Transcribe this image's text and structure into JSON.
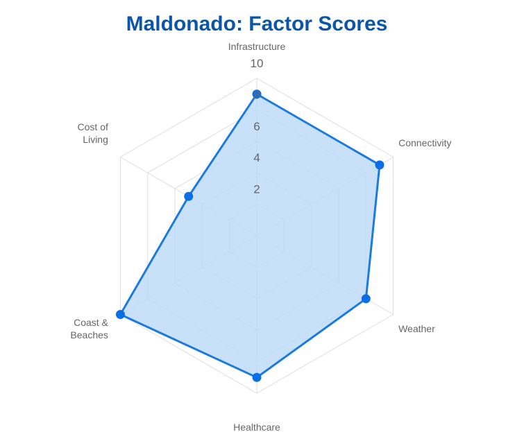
{
  "colors": {
    "title": "#0b56a8",
    "series_line": "#1a7ae0",
    "series_fill": "#b8d9f7",
    "series_point": "#0a6fe6",
    "grid": "#dedede",
    "label": "#666666"
  },
  "chart_data": {
    "type": "radar",
    "title": "Maldonado: Factor Scores",
    "axes": [
      {
        "label_lines": [
          "Infrastructure"
        ]
      },
      {
        "label_lines": [
          "Connectivity"
        ]
      },
      {
        "label_lines": [
          "Weather"
        ]
      },
      {
        "label_lines": [
          "Healthcare"
        ]
      },
      {
        "label_lines": [
          "Coast &",
          "Beaches"
        ]
      },
      {
        "label_lines": [
          "Cost of",
          "Living"
        ]
      }
    ],
    "series": [
      {
        "values": [
          9,
          9,
          8,
          9,
          10,
          5
        ]
      }
    ],
    "r_range": [
      0,
      10
    ],
    "ticks": [
      2,
      4,
      6,
      8,
      10
    ],
    "grid": true,
    "legend": "none"
  }
}
